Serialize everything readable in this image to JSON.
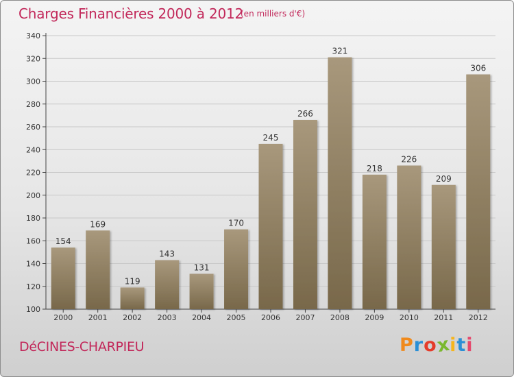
{
  "header": {
    "title": "Charges Financières 2000 à 2012",
    "subtitle": "(en milliers d'€)"
  },
  "footer": {
    "city": "DéCINES-CHARPIEU",
    "brand_letters": [
      "P",
      "r",
      "o",
      "x",
      "i",
      "t",
      "i"
    ],
    "brand_colors": [
      "#f08a1c",
      "#2a8fd6",
      "#e53b2a",
      "#7ab82e",
      "#f6b51c",
      "#2a8fd6",
      "#e5486c"
    ]
  },
  "colors": {
    "title": "#c2285a",
    "bar_light": "#a8987c",
    "bar_dark": "#78684a",
    "axis": "#444444",
    "grid": "#c8c8c8"
  },
  "chart_data": {
    "type": "bar",
    "title": "Charges Financières 2000 à 2012",
    "subtitle": "(en milliers d'€)",
    "categories": [
      "2000",
      "2001",
      "2002",
      "2003",
      "2004",
      "2005",
      "2006",
      "2007",
      "2008",
      "2009",
      "2010",
      "2011",
      "2012"
    ],
    "values": [
      154,
      169,
      119,
      143,
      131,
      170,
      245,
      266,
      321,
      218,
      226,
      209,
      306
    ],
    "yticks": [
      100,
      120,
      140,
      160,
      180,
      200,
      220,
      240,
      260,
      280,
      300,
      320,
      340
    ],
    "ylim": [
      100,
      340
    ],
    "grid": true,
    "data_labels": true
  }
}
